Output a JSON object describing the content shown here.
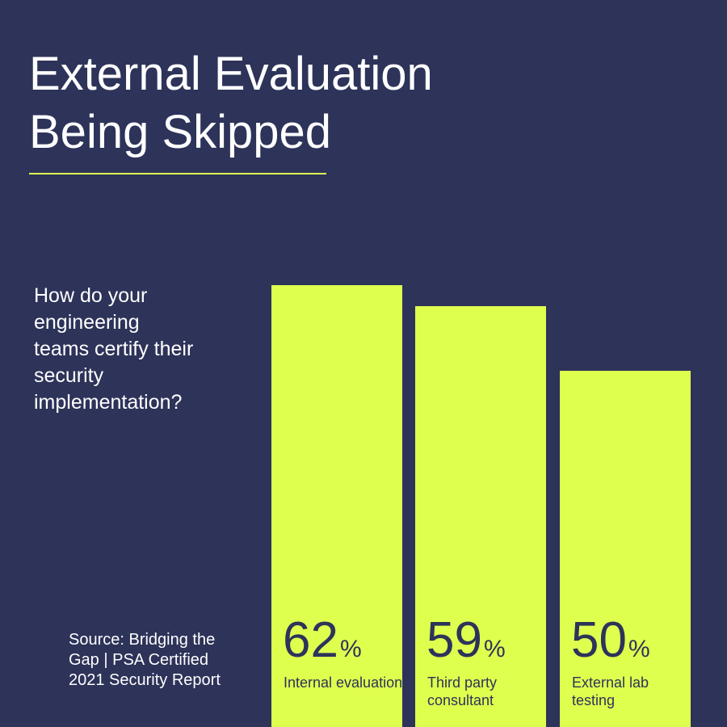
{
  "title_line1": "External Evaluation",
  "title_line2": "Being Skipped",
  "question": "How do your engineering teams certify their security implementation?",
  "source": "Source: Bridging the Gap | PSA Certified 2021 Security Report",
  "colors": {
    "background": "#2d3359",
    "bar": "#dfff4f",
    "text": "#ffffff",
    "bar_text": "#2d3359"
  },
  "chart_data": {
    "type": "bar",
    "categories": [
      "Internal evaluation",
      "Third party consultant",
      "External lab testing"
    ],
    "values": [
      62,
      59,
      50
    ],
    "value_labels": [
      "62",
      "59",
      "50"
    ],
    "unit": "%",
    "ylim": [
      0,
      100
    ]
  }
}
